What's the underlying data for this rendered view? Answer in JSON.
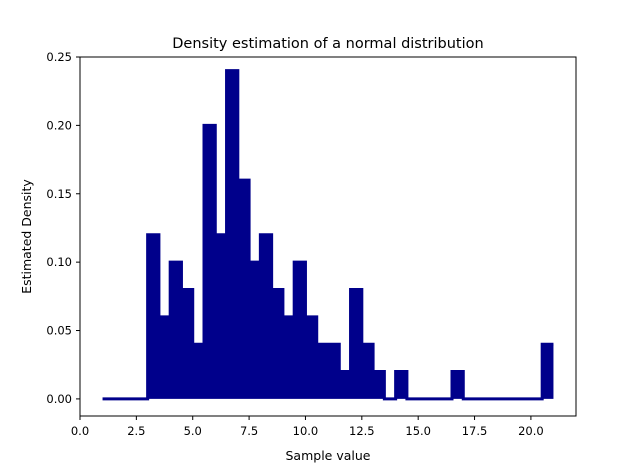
{
  "chart_data": {
    "type": "area",
    "title": "Density estimation of a normal distribution",
    "xlabel": "Sample value",
    "ylabel": "Estimated Density",
    "xlim": [
      0.0,
      22.0
    ],
    "ylim": [
      -0.0125,
      0.25
    ],
    "xticks": [
      0.0,
      2.5,
      5.0,
      7.5,
      10.0,
      12.5,
      15.0,
      17.5,
      20.0
    ],
    "xtick_labels": [
      "0.0",
      "2.5",
      "5.0",
      "7.5",
      "10.0",
      "12.5",
      "15.0",
      "17.5",
      "20.0"
    ],
    "yticks": [
      0.0,
      0.05,
      0.1,
      0.15,
      0.2,
      0.25
    ],
    "ytick_labels": [
      "0.00",
      "0.05",
      "0.10",
      "0.15",
      "0.20",
      "0.25"
    ],
    "grid": false,
    "fill_color": "#00008b",
    "series": [
      {
        "x": [
          1.0,
          3.0,
          3.0,
          3.5,
          3.5,
          4.0,
          4.0,
          4.5,
          4.5,
          5.0,
          5.0,
          5.5,
          5.5,
          6.0,
          6.0,
          6.5,
          6.5,
          7.0,
          7.0,
          7.5,
          7.5,
          8.0,
          8.0,
          8.5,
          8.5,
          9.0,
          9.0,
          9.5,
          9.5,
          10.0,
          10.0,
          10.5,
          10.5,
          11.0,
          11.0,
          11.5,
          11.5,
          12.0,
          12.0,
          12.5,
          12.5,
          13.0,
          13.0,
          13.5,
          13.5,
          14.0,
          14.0,
          14.5,
          14.5,
          16.5,
          16.5,
          17.0,
          17.0,
          20.5,
          20.5,
          21.0
        ],
        "y": [
          0.0,
          0.0,
          0.12,
          0.12,
          0.06,
          0.06,
          0.1,
          0.1,
          0.08,
          0.08,
          0.04,
          0.04,
          0.2,
          0.2,
          0.12,
          0.12,
          0.24,
          0.24,
          0.16,
          0.16,
          0.1,
          0.1,
          0.12,
          0.12,
          0.08,
          0.08,
          0.06,
          0.06,
          0.1,
          0.1,
          0.06,
          0.06,
          0.04,
          0.04,
          0.04,
          0.04,
          0.02,
          0.02,
          0.08,
          0.08,
          0.04,
          0.04,
          0.02,
          0.02,
          0.0,
          0.0,
          0.02,
          0.02,
          0.0,
          0.0,
          0.02,
          0.02,
          0.0,
          0.0,
          0.04,
          0.04
        ]
      }
    ]
  }
}
